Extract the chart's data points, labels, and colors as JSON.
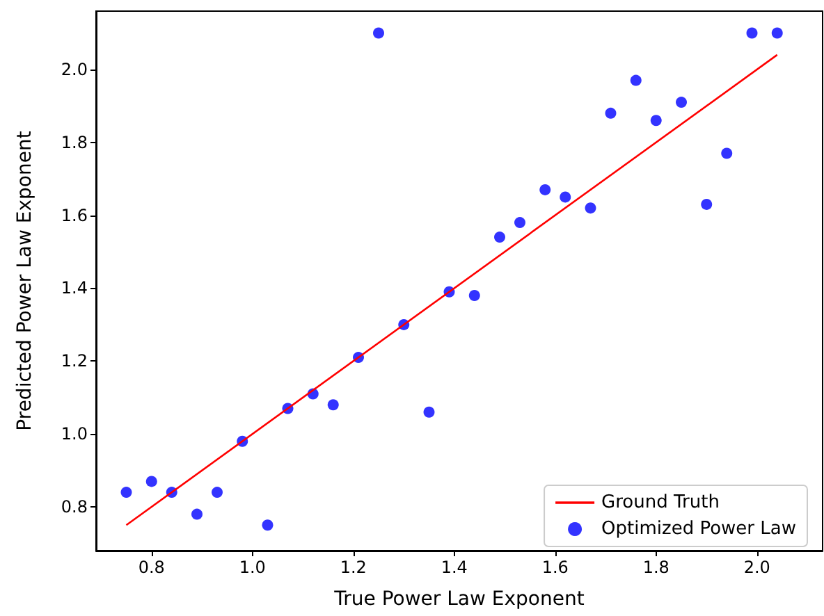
{
  "chart_data": {
    "type": "scatter",
    "xlabel": "True Power Law Exponent",
    "ylabel": "Predicted Power Law Exponent",
    "xlim": [
      0.69,
      2.13
    ],
    "ylim": [
      0.68,
      2.16
    ],
    "xticks": [
      0.8,
      {
        "value": 1,
        "label": "1.0"
      },
      1.2,
      1.4,
      1.6,
      1.8,
      {
        "value": 2,
        "label": "2.0"
      }
    ],
    "yticks": [
      0.8,
      {
        "value": 1,
        "label": "1.0"
      },
      1.2,
      1.4,
      1.6,
      1.8,
      {
        "value": 2,
        "label": "2.0"
      }
    ],
    "grid": false,
    "legend": "bottom right",
    "series": [
      {
        "name": "Ground Truth",
        "type": "line",
        "color": "#ff0000",
        "marker": "none",
        "x": [
          0.75,
          2.04
        ],
        "values": [
          0.75,
          2.04
        ]
      },
      {
        "name": "Optimized Power Law",
        "color": "#0000ff",
        "marker": "circle",
        "x": [
          0.75,
          0.8,
          0.84,
          0.89,
          0.93,
          0.98,
          1.03,
          1.07,
          1.12,
          1.16,
          1.21,
          1.25,
          1.3,
          1.35,
          1.39,
          1.44,
          1.49,
          1.53,
          1.58,
          1.62,
          1.67,
          1.71,
          1.76,
          1.8,
          1.85,
          1.9,
          1.94,
          1.99,
          2.04
        ],
        "values": [
          0.84,
          0.87,
          0.84,
          0.78,
          0.84,
          0.98,
          0.75,
          1.07,
          1.11,
          1.08,
          1.21,
          2.1,
          1.3,
          1.06,
          1.39,
          1.38,
          1.54,
          1.58,
          1.67,
          1.65,
          1.62,
          1.88,
          1.97,
          1.86,
          1.91,
          1.63,
          1.77,
          2.1,
          2.1
        ]
      }
    ]
  }
}
